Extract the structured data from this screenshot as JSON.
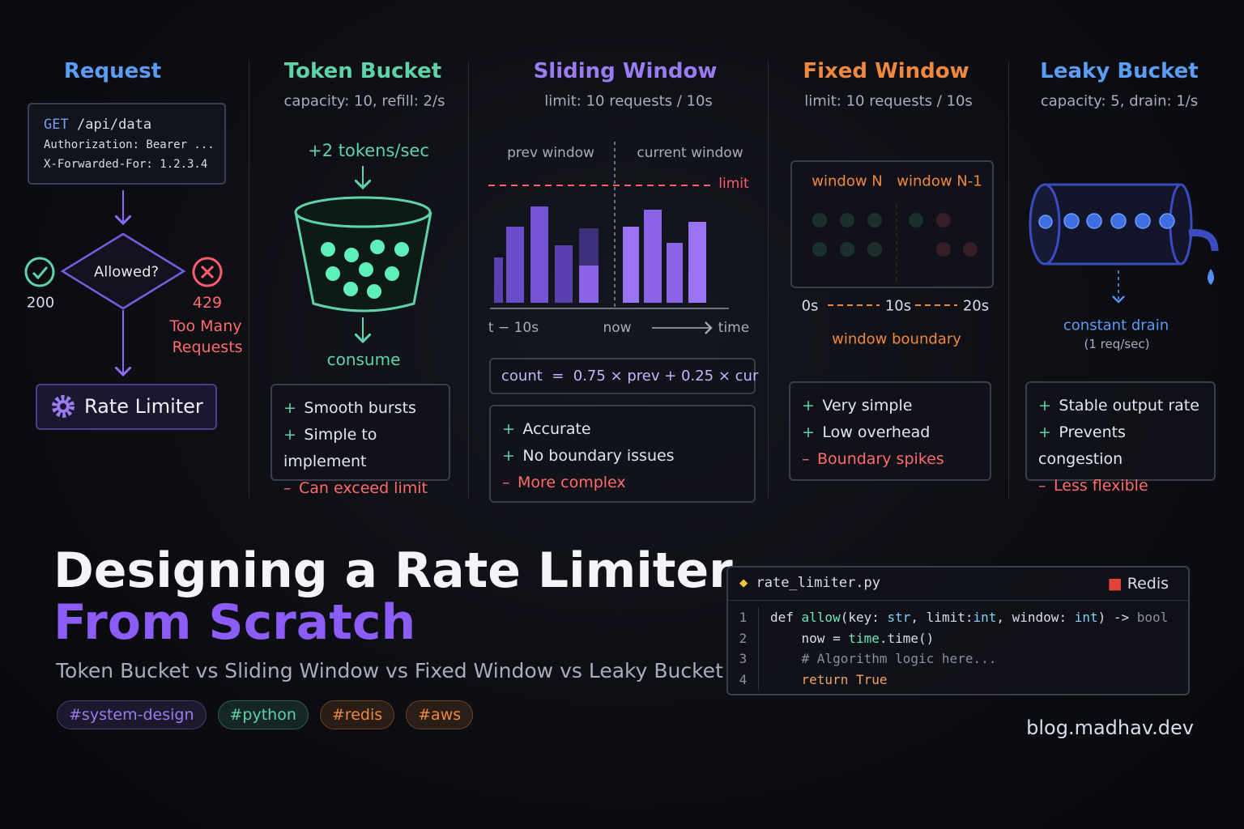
{
  "request": {
    "title": "Request",
    "method": "GET",
    "path": "/api/data",
    "headers": [
      "Authorization: Bearer ...",
      "X-Forwarded-For: 1.2.3.4"
    ],
    "decision": "Allowed?",
    "allowed_code": 200,
    "rejected_code": 429,
    "rejected_message": [
      "Too Many",
      "Requests"
    ],
    "component": "Rate Limiter"
  },
  "signs": {
    "pro": "+",
    "con": "–"
  },
  "token_bucket": {
    "title": "Token Bucket",
    "subtitle": "capacity: 10, refill: 2/s",
    "refill": "+2 tokens/sec",
    "consume": "consume",
    "pros": [
      "Smooth bursts",
      "Simple to implement"
    ],
    "cons": [
      "Can exceed limit"
    ]
  },
  "sliding_window": {
    "title": "Sliding Window",
    "subtitle": "limit: 10 requests / 10s",
    "prev": "prev window",
    "current": "current window",
    "limit": "limit",
    "axis": [
      "t − 10s",
      "now",
      "time"
    ],
    "formula": "count  =  0.75 × prev + 0.25 × cur",
    "pros": [
      "Accurate",
      "No boundary issues"
    ],
    "cons": [
      "More complex"
    ]
  },
  "fixed_window": {
    "title": "Fixed Window",
    "subtitle": "limit: 10 requests / 10s",
    "windows": [
      "window N",
      "window N-1"
    ],
    "timeline": [
      "0s",
      "10s",
      "20s"
    ],
    "boundary": "window boundary",
    "pros": [
      "Very simple",
      "Low overhead"
    ],
    "cons": [
      "Boundary spikes"
    ]
  },
  "leaky_bucket": {
    "title": "Leaky Bucket",
    "subtitle": "capacity: 5, drain: 1/s",
    "drain": "constant drain",
    "rate": "(1 req/sec)",
    "pros": [
      "Stable output rate",
      "Prevents congestion"
    ],
    "cons": [
      "Less flexible"
    ]
  },
  "headline": {
    "line1": "Designing a Rate Limiter",
    "line2": "From Scratch",
    "subtitle": "Token Bucket vs Sliding Window vs Fixed Window vs Leaky Bucket"
  },
  "tags": [
    {
      "text": "#system-design",
      "color": "#9b7bf0"
    },
    {
      "text": "#python",
      "color": "#5fd3a8"
    },
    {
      "text": "#redis",
      "color": "#f0883e"
    },
    {
      "text": "#aws",
      "color": "#f0883e"
    }
  ],
  "code": {
    "file": "rate_limiter.py",
    "badge": "Redis",
    "lines": [
      {
        "number": 1,
        "tokens": [
          {
            "text": "def ",
            "color": "#d8dee9"
          },
          {
            "text": "allow",
            "color": "#6ee7b7"
          },
          {
            "text": "(key: ",
            "color": "#d8dee9"
          },
          {
            "text": "str",
            "color": "#7dd3fc"
          },
          {
            "text": ", limit:",
            "color": "#d8dee9"
          },
          {
            "text": "int",
            "color": "#7dd3fc"
          },
          {
            "text": ", window: ",
            "color": "#d8dee9"
          },
          {
            "text": "int",
            "color": "#7dd3fc"
          },
          {
            "text": ") -> ",
            "color": "#d8dee9"
          },
          {
            "text": "bool",
            "color": "#8a8fa0"
          }
        ]
      },
      {
        "number": 2,
        "tokens": [
          {
            "text": "    now = ",
            "color": "#d8dee9"
          },
          {
            "text": "time",
            "color": "#6ee7b7"
          },
          {
            "text": ".time()",
            "color": "#d8dee9"
          }
        ]
      },
      {
        "number": 3,
        "tokens": [
          {
            "text": "    # Algorithm logic here...",
            "color": "#8a8fa0"
          }
        ]
      },
      {
        "number": 4,
        "tokens": [
          {
            "text": "    return ",
            "color": "#f5a25d"
          },
          {
            "text": "True",
            "color": "#f5a25d"
          }
        ]
      }
    ]
  },
  "url": "blog.madhav.dev"
}
